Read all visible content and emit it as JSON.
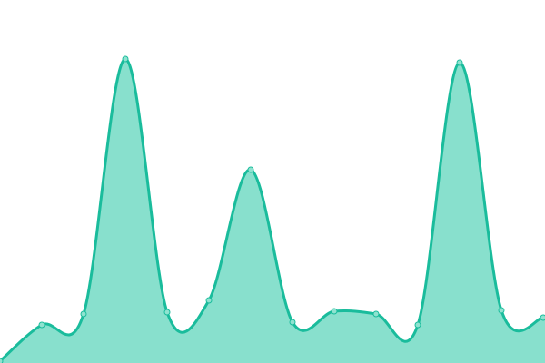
{
  "chart_data": {
    "type": "area",
    "title": "",
    "xlabel": "",
    "ylabel": "",
    "x": [
      0,
      1,
      2,
      3,
      4,
      5,
      6,
      7,
      8,
      9,
      10,
      11,
      12,
      13
    ],
    "values": [
      2,
      42,
      54,
      335,
      56,
      69,
      213,
      45,
      57,
      54,
      42,
      331,
      58,
      50
    ],
    "ylim": [
      0,
      400
    ],
    "grid": false,
    "axes_visible": false,
    "curve": "smooth",
    "colors": {
      "line": "#1abc9c",
      "fill": "#88e0cd",
      "point_fill": "#8fe3d0"
    }
  }
}
